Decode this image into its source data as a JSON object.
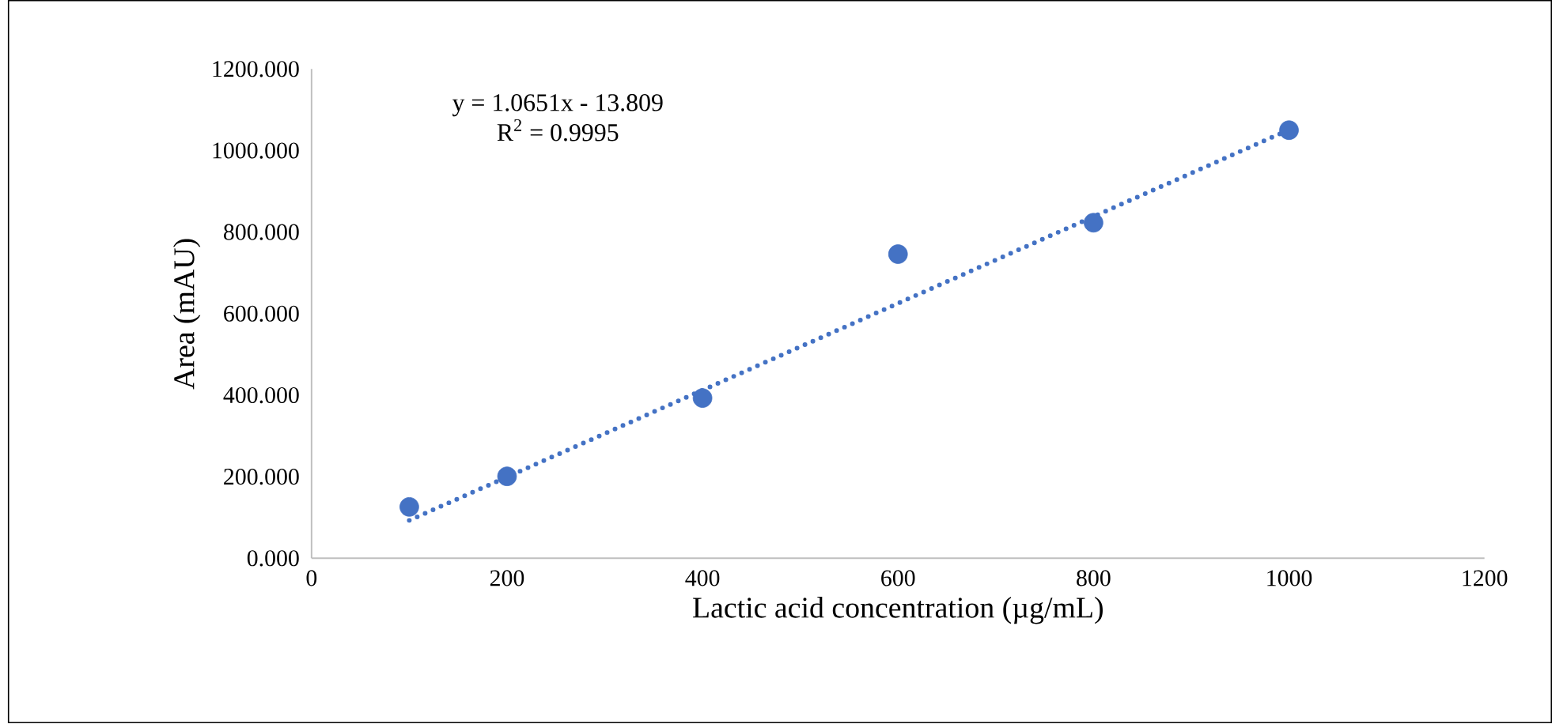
{
  "chart_data": {
    "type": "scatter",
    "xlabel": "Lactic acid concentration (µg/mL)",
    "ylabel": "Area (mAU)",
    "x": [
      100,
      200,
      400,
      600,
      800,
      1000
    ],
    "series": [
      {
        "color": "#4472c4",
        "marker": "circle",
        "values": [
          126,
          201,
          393,
          746,
          823,
          1050
        ]
      },
      {
        "type": "line",
        "color": "#4472c4",
        "line_style": "dotted",
        "marker": "none",
        "x": [
          100,
          1000
        ],
        "values": [
          93,
          1051
        ]
      }
    ],
    "annotations": [
      "y = 1.0651x - 13.809",
      "R$^{2}$ = 0.9995"
    ],
    "xlim": [
      0,
      1200
    ],
    "xticks": [
      0,
      200,
      400,
      600,
      800,
      1000,
      1200
    ],
    "ylim": [
      0,
      1200
    ],
    "yticks": [
      {
        "value": 0,
        "label": "0.000"
      },
      {
        "value": 200,
        "label": "200.000"
      },
      {
        "value": 400,
        "label": "400.000"
      },
      {
        "value": 600,
        "label": "600.000"
      },
      {
        "value": 800,
        "label": "800.000"
      },
      {
        "value": 1000,
        "label": "1000.000"
      },
      {
        "value": 1200,
        "label": "1200.000"
      }
    ],
    "grid": false
  }
}
